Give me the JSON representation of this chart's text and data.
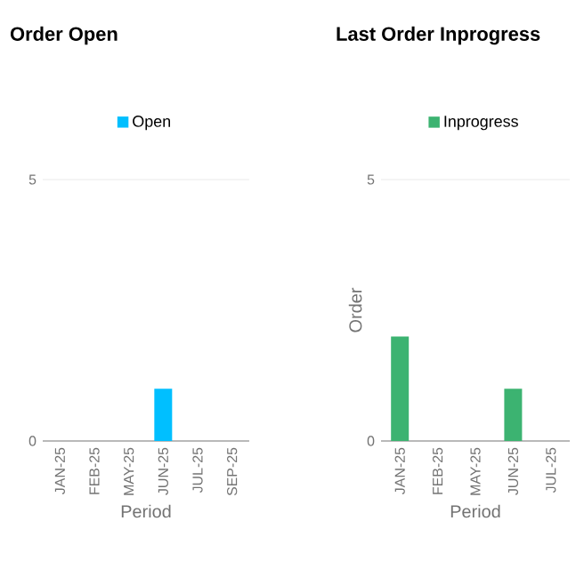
{
  "chart_data": [
    {
      "type": "bar",
      "title": "Order Open",
      "xlabel": "Period",
      "categories": [
        "JAN-25",
        "FEB-25",
        "MAY-25",
        "JUN-25",
        "JUL-25",
        "SEP-25"
      ],
      "series": [
        {
          "name": "Open",
          "color": "#00bfff",
          "values": [
            0,
            0,
            0,
            1,
            0,
            0
          ]
        }
      ],
      "ylim": [
        0,
        5
      ],
      "yticks": [
        0,
        5
      ],
      "grid": "y",
      "legend": "top"
    },
    {
      "type": "bar",
      "title": "Last Order Inprogress",
      "xlabel": "Period",
      "ylabel": "Order",
      "categories": [
        "JAN-25",
        "FEB-25",
        "MAY-25",
        "JUN-25",
        "JUL-25"
      ],
      "series": [
        {
          "name": "Inprogress",
          "color": "#3cb371",
          "values": [
            2,
            0,
            0,
            1,
            0
          ]
        }
      ],
      "ylim": [
        0,
        5
      ],
      "yticks": [
        0,
        5
      ],
      "grid": "y",
      "legend": "top"
    }
  ]
}
